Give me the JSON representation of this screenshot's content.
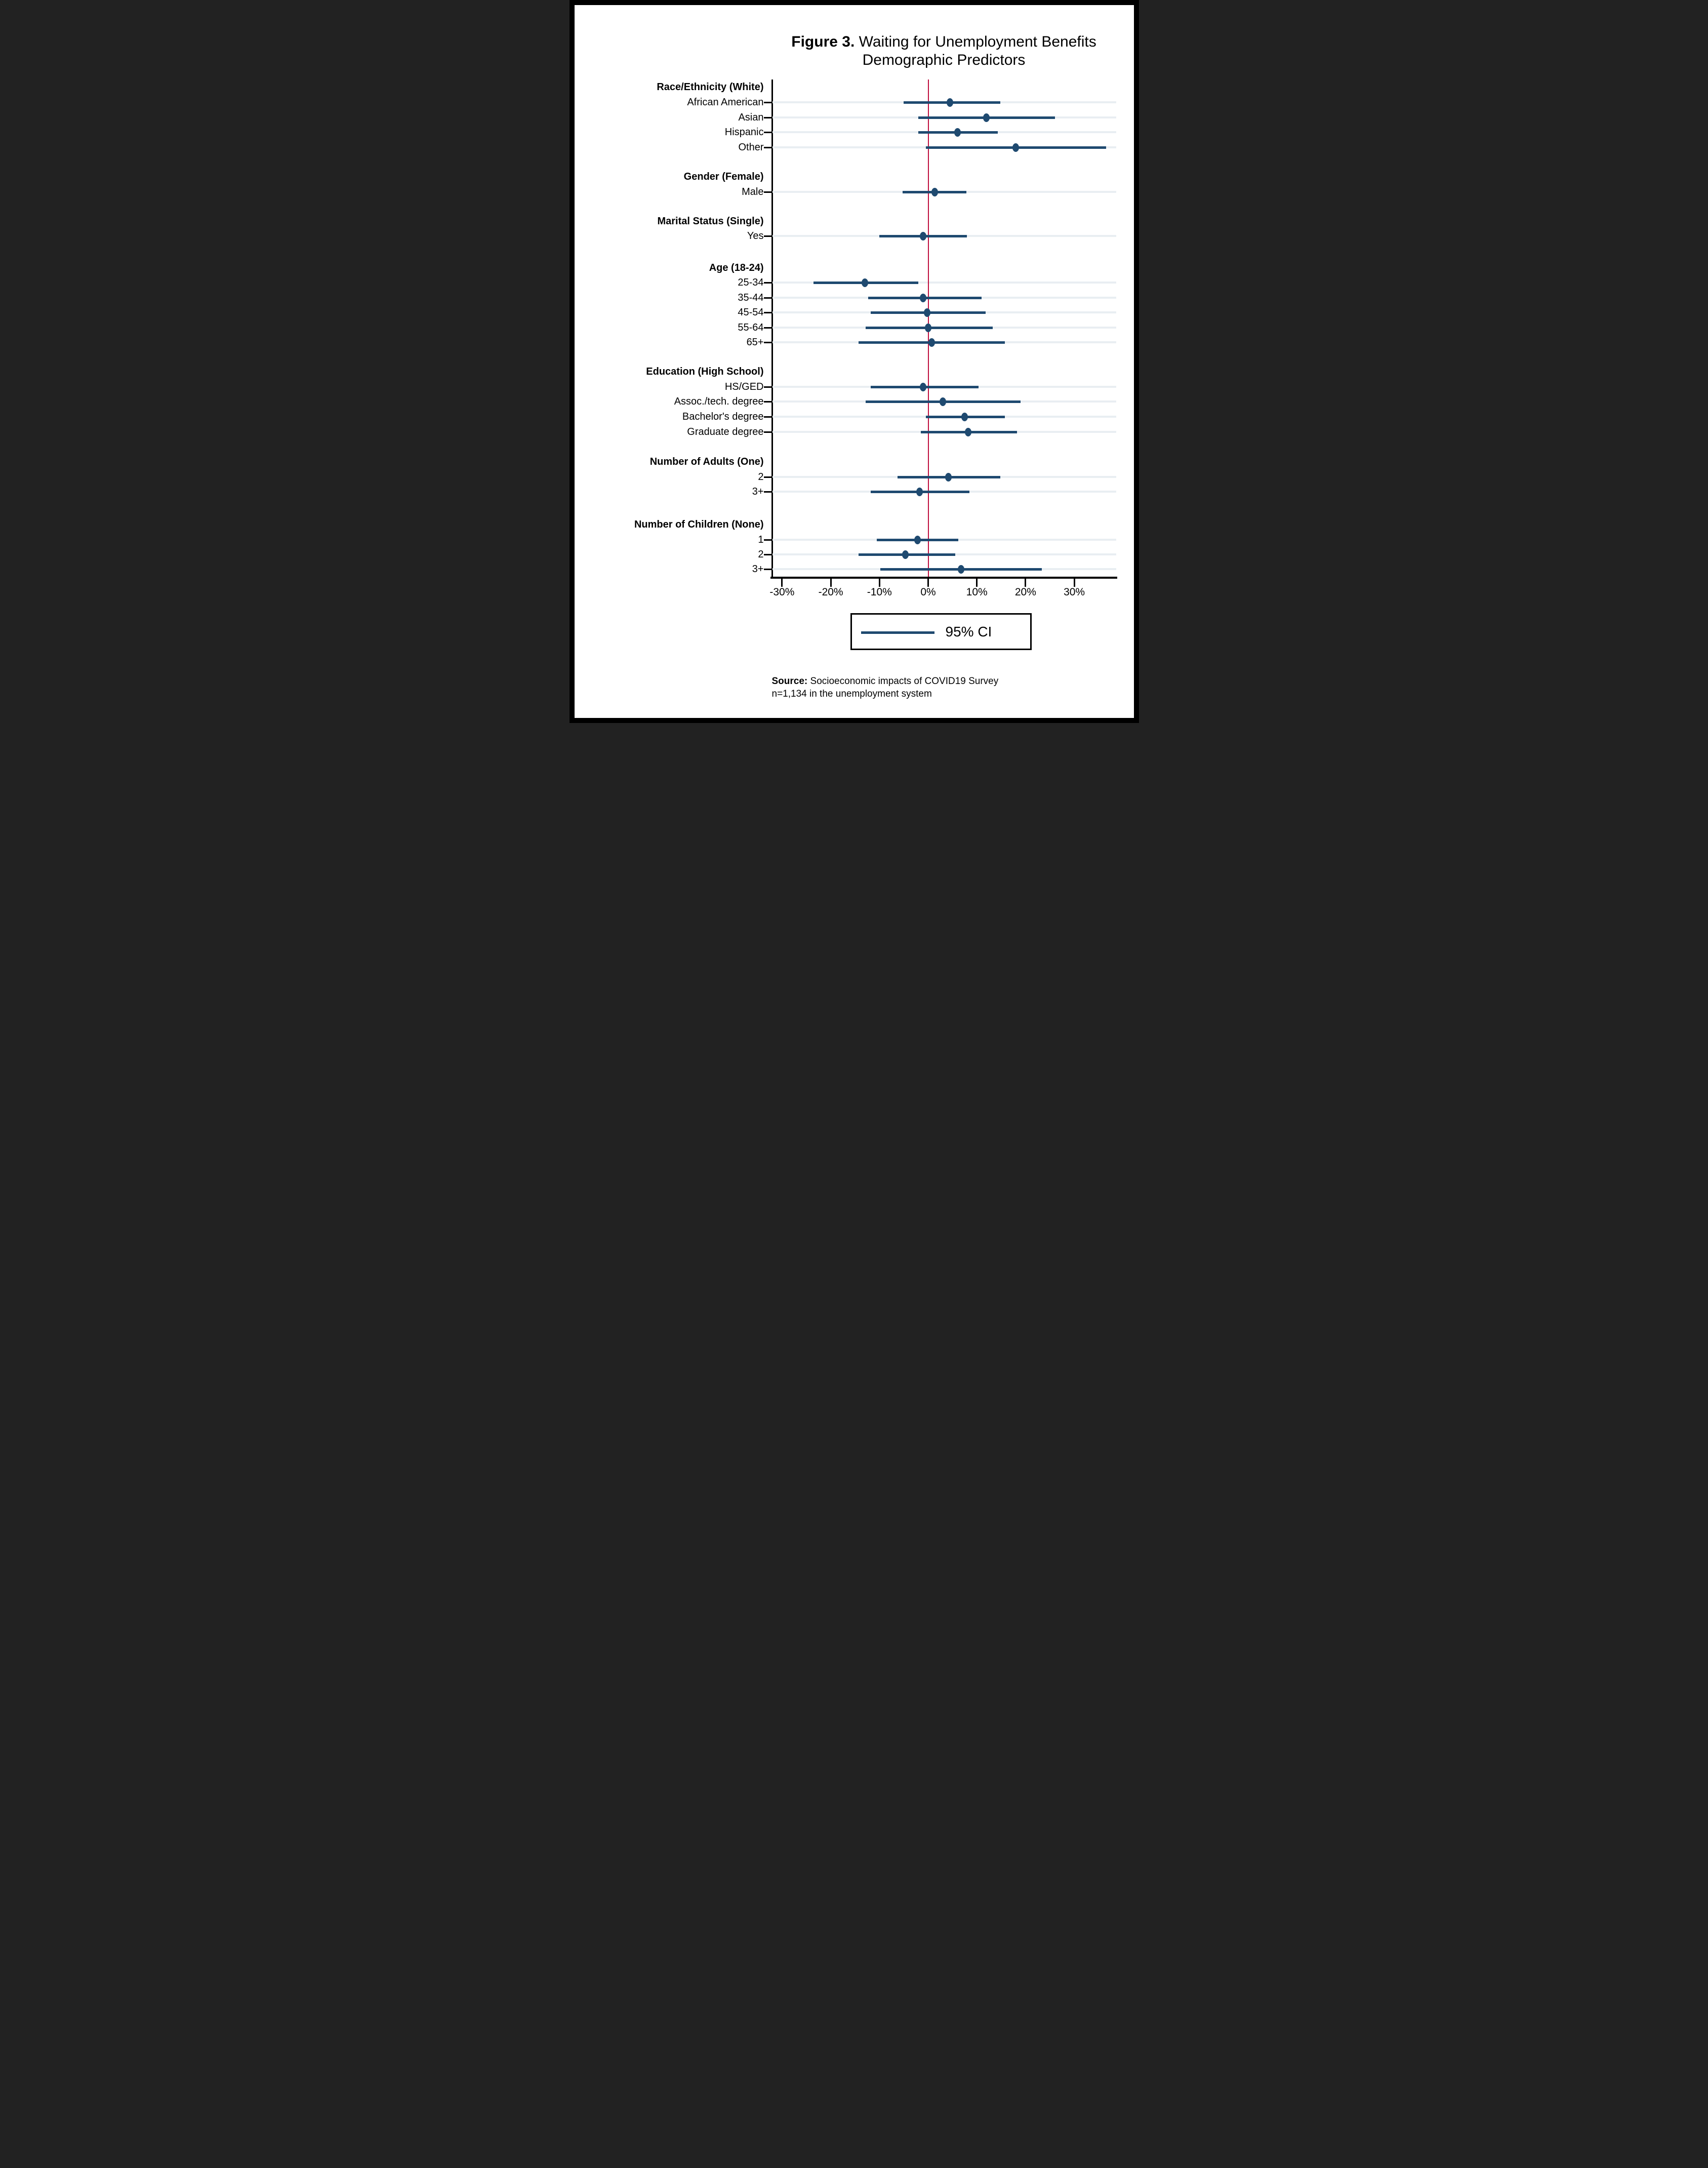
{
  "title": {
    "prefix": "Figure 3.",
    "rest": " Waiting for Unemployment Benefits",
    "line2": "Demographic Predictors"
  },
  "legend": {
    "label": "95% CI",
    "swatch": "navy-line"
  },
  "source": {
    "prefix": "Source:",
    "line1_rest": " Socioeconomic impacts of COVID19 Survey",
    "line2": "n=1,134 in the unemployment system"
  },
  "colors": {
    "ci": "#1f4a70",
    "marker": "#1f4a70",
    "band": "#e9eef2",
    "zero_line": "#bf0d3e",
    "axis": "#000000",
    "background": "#ffffff",
    "frame_border": "#000000"
  },
  "x_axis": {
    "unit": "%",
    "tick_values": [
      -30,
      -20,
      -10,
      0,
      10,
      20,
      30
    ],
    "tick_labels": [
      "-30%",
      "-20%",
      "-10%",
      "0%",
      "10%",
      "20%",
      "30%"
    ]
  },
  "chart_data": {
    "type": "scatter",
    "subtype": "coefficient-forest-plot",
    "title": "Figure 3. Waiting for Unemployment Benefits Demographic Predictors",
    "xlabel": "",
    "ylabel": "",
    "xlim": [
      -32,
      39
    ],
    "grid": "horizontal-bands",
    "legend_position": "bottom-center",
    "zero_reference_line": 0,
    "sections": [
      {
        "header": "Race/Ethnicity (White)",
        "rows": [
          {
            "label": "African American",
            "estimate": 4.5,
            "ci_low": -5.0,
            "ci_high": 14.8
          },
          {
            "label": "Asian",
            "estimate": 12.0,
            "ci_low": -2.0,
            "ci_high": 26.0
          },
          {
            "label": "Hispanic",
            "estimate": 6.0,
            "ci_low": -2.0,
            "ci_high": 14.3
          },
          {
            "label": "Other",
            "estimate": 18.0,
            "ci_low": -0.5,
            "ci_high": 36.5
          }
        ]
      },
      {
        "header": "Gender (Female)",
        "rows": [
          {
            "label": "Male",
            "estimate": 1.3,
            "ci_low": -5.2,
            "ci_high": 7.8
          }
        ]
      },
      {
        "header": "Marital Status (Single)",
        "rows": [
          {
            "label": "Yes",
            "estimate": -1.0,
            "ci_low": -10.0,
            "ci_high": 8.0
          }
        ]
      },
      {
        "header": "Age (18-24)",
        "rows": [
          {
            "label": "25-34",
            "estimate": -13.0,
            "ci_low": -23.5,
            "ci_high": -2.0
          },
          {
            "label": "35-44",
            "estimate": -1.0,
            "ci_low": -12.3,
            "ci_high": 11.0
          },
          {
            "label": "45-54",
            "estimate": -0.2,
            "ci_low": -11.8,
            "ci_high": 11.8
          },
          {
            "label": "55-64",
            "estimate": 0.0,
            "ci_low": -12.8,
            "ci_high": 13.3
          },
          {
            "label": "65+",
            "estimate": 0.7,
            "ci_low": -14.3,
            "ci_high": 15.7
          }
        ]
      },
      {
        "header": "Education (High School)",
        "rows": [
          {
            "label": "HS/GED",
            "estimate": -1.0,
            "ci_low": -11.8,
            "ci_high": 10.3
          },
          {
            "label": "Assoc./tech. degree",
            "estimate": 3.0,
            "ci_low": -12.8,
            "ci_high": 19.0
          },
          {
            "label": "Bachelor's degree",
            "estimate": 7.5,
            "ci_low": -0.5,
            "ci_high": 15.8
          },
          {
            "label": "Graduate degree",
            "estimate": 8.2,
            "ci_low": -1.5,
            "ci_high": 18.2
          }
        ]
      },
      {
        "header": "Number of Adults (One)",
        "rows": [
          {
            "label": "2",
            "estimate": 4.2,
            "ci_low": -6.3,
            "ci_high": 14.8
          },
          {
            "label": "3+",
            "estimate": -1.8,
            "ci_low": -11.8,
            "ci_high": 8.5
          }
        ]
      },
      {
        "header": "Number of Children (None)",
        "rows": [
          {
            "label": "1",
            "estimate": -2.2,
            "ci_low": -10.5,
            "ci_high": 6.2
          },
          {
            "label": "2",
            "estimate": -4.7,
            "ci_low": -14.3,
            "ci_high": 5.6
          },
          {
            "label": "3+",
            "estimate": 6.8,
            "ci_low": -9.8,
            "ci_high": 23.3
          }
        ]
      }
    ]
  }
}
